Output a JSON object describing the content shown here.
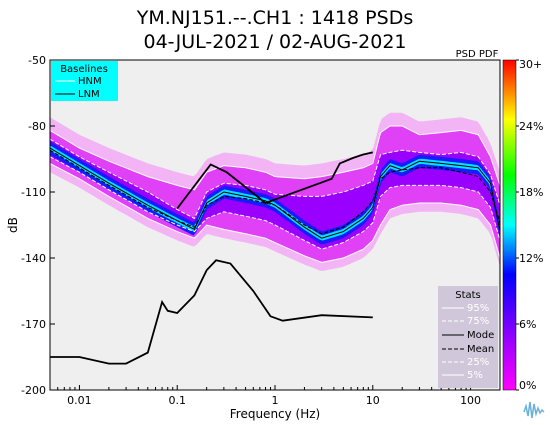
{
  "chart_data": {
    "type": "heatmap",
    "title": [
      "YM.NJ151.--.CH1 : 1418 PSDs",
      "04-JUL-2021 / 02-AUG-2021"
    ],
    "xlabel": "Frequency (Hz)",
    "ylabel": "dB",
    "x_scale": "log",
    "xlim": [
      0.005,
      200
    ],
    "ylim": [
      -200,
      -50
    ],
    "x_ticks": [
      0.01,
      0.1,
      1,
      10,
      100
    ],
    "x_tick_labels": [
      "0.01",
      "0.1",
      "1",
      "10",
      "100"
    ],
    "y_ticks": [
      -200,
      -170,
      -140,
      -110,
      -80,
      -50
    ],
    "y_tick_labels": [
      "-200",
      "-170",
      "-140",
      "-110",
      "-80",
      "-50"
    ],
    "colorbar": {
      "title": "PSD PDF",
      "ticks": [
        0,
        6,
        12,
        18,
        24,
        30
      ],
      "tick_labels": [
        "0%",
        "6%",
        "12%",
        "18%",
        "24%",
        "30+"
      ],
      "colors": [
        "#ff00ff",
        "#9a00ff",
        "#0000ff",
        "#00ffff",
        "#00ff00",
        "#ffff00",
        "#ff0000"
      ]
    },
    "baselines_legend": {
      "title": "Baselines",
      "items": [
        "HNM",
        "LNM"
      ]
    },
    "stats_legend": {
      "title": "Stats",
      "items": [
        "95%",
        "75%",
        "Mode",
        "Mean",
        "25%",
        "5%"
      ]
    },
    "hnm": {
      "x": [
        0.1,
        0.22,
        0.32,
        0.8,
        3.8,
        4.6,
        6.3,
        7.9,
        10
      ],
      "y": [
        -117.5,
        -97.5,
        -101,
        -115,
        -104,
        -97,
        -94.5,
        -93,
        -92
      ]
    },
    "lnm": {
      "x": [
        0.005,
        0.01,
        0.02,
        0.03,
        0.05,
        0.07,
        0.08,
        0.1,
        0.15,
        0.2,
        0.25,
        0.35,
        0.6,
        0.9,
        1.2,
        3,
        10
      ],
      "y": [
        -185,
        -185,
        -188,
        -188,
        -183,
        -160,
        -164,
        -165,
        -157,
        -145.5,
        -141,
        -142.5,
        -155,
        -166.5,
        -168.5,
        -166,
        -167
      ]
    },
    "series": [
      {
        "name": "95%",
        "x": [
          0.005,
          0.01,
          0.02,
          0.05,
          0.1,
          0.15,
          0.2,
          0.3,
          0.5,
          0.8,
          1,
          2,
          3,
          5,
          8,
          10,
          12,
          15,
          20,
          30,
          50,
          80,
          120,
          160,
          200
        ],
        "y": [
          -82,
          -90,
          -96,
          -103,
          -107,
          -109,
          -101,
          -98,
          -99,
          -101,
          -103,
          -104,
          -103,
          -101,
          -99,
          -97,
          -83,
          -80,
          -80,
          -84,
          -83,
          -82,
          -84,
          -94,
          -107
        ]
      },
      {
        "name": "75%",
        "x": [
          0.005,
          0.01,
          0.02,
          0.05,
          0.1,
          0.15,
          0.2,
          0.3,
          0.5,
          0.8,
          1,
          2,
          3,
          5,
          8,
          10,
          12,
          15,
          20,
          30,
          50,
          80,
          120,
          160,
          200
        ],
        "y": [
          -86,
          -94,
          -101,
          -110,
          -118,
          -122,
          -110,
          -106,
          -107,
          -109,
          -111,
          -112,
          -112,
          -110,
          -107,
          -105,
          -93,
          -92,
          -91,
          -92,
          -93,
          -92,
          -94,
          -102,
          -116
        ]
      },
      {
        "name": "Mode",
        "x": [
          0.005,
          0.01,
          0.02,
          0.05,
          0.1,
          0.15,
          0.2,
          0.3,
          0.5,
          0.8,
          1,
          2,
          3,
          5,
          8,
          10,
          12,
          15,
          20,
          30,
          50,
          80,
          120,
          160,
          200
        ],
        "y": [
          -90,
          -98,
          -106,
          -116,
          -123,
          -127,
          -115,
          -110,
          -112,
          -114,
          -116,
          -126,
          -131,
          -128,
          -122,
          -117,
          -103,
          -98,
          -100,
          -96,
          -97,
          -98,
          -99,
          -106,
          -128
        ]
      },
      {
        "name": "Mean",
        "x": [
          0.005,
          0.01,
          0.02,
          0.05,
          0.1,
          0.15,
          0.2,
          0.3,
          0.5,
          0.8,
          1,
          2,
          3,
          5,
          8,
          10,
          12,
          15,
          20,
          30,
          50,
          80,
          120,
          160,
          200
        ],
        "y": [
          -91,
          -99,
          -107,
          -117,
          -123,
          -126,
          -116,
          -112,
          -113,
          -115,
          -116,
          -125,
          -129,
          -126,
          -119,
          -114,
          -104,
          -101,
          -100,
          -99,
          -99,
          -101,
          -103,
          -110,
          -124
        ]
      },
      {
        "name": "25%",
        "x": [
          0.005,
          0.01,
          0.02,
          0.05,
          0.1,
          0.15,
          0.2,
          0.3,
          0.5,
          0.8,
          1,
          2,
          3,
          5,
          8,
          10,
          12,
          15,
          20,
          30,
          50,
          80,
          120,
          160,
          200
        ],
        "y": [
          -94,
          -101,
          -109,
          -119,
          -125,
          -128,
          -122,
          -119,
          -121,
          -123,
          -125,
          -132,
          -136,
          -133,
          -128,
          -124,
          -112,
          -108,
          -107,
          -107,
          -107,
          -108,
          -110,
          -117,
          -132
        ]
      },
      {
        "name": "5%",
        "x": [
          0.005,
          0.01,
          0.02,
          0.05,
          0.1,
          0.15,
          0.2,
          0.3,
          0.5,
          0.8,
          1,
          2,
          3,
          5,
          8,
          10,
          12,
          15,
          20,
          30,
          50,
          80,
          120,
          160,
          200
        ],
        "y": [
          -97,
          -104,
          -112,
          -122,
          -128,
          -131,
          -125,
          -127,
          -129,
          -131,
          -133,
          -139,
          -142,
          -140,
          -136,
          -132,
          -125,
          -118,
          -116,
          -115,
          -115,
          -116,
          -118,
          -125,
          -140
        ]
      }
    ]
  }
}
